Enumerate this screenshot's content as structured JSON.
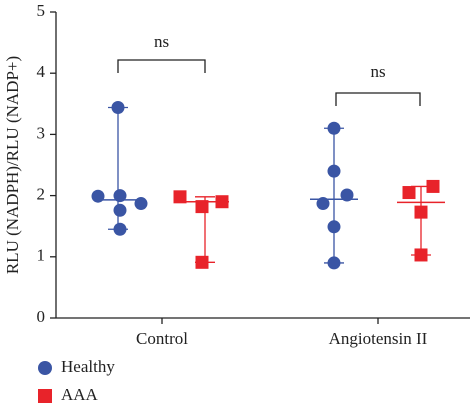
{
  "chart_data": {
    "type": "dot",
    "y_label": "RLU (NADPH)/RLU (NADP+)",
    "categories": [
      "Control",
      "Angiotensin II"
    ],
    "ylim": [
      0,
      5
    ],
    "yticks": [
      0,
      1,
      2,
      3,
      4,
      5
    ],
    "series": [
      {
        "name": "Healthy",
        "color": "#3a55a4",
        "marker": "circle",
        "values": [
          [
            3.44,
            1.99,
            2.0,
            1.87,
            1.76,
            1.45
          ],
          [
            3.1,
            2.4,
            2.01,
            1.87,
            1.49,
            0.9
          ]
        ],
        "medians": [
          1.93,
          1.94
        ]
      },
      {
        "name": "AAA",
        "color": "#e8232a",
        "marker": "square",
        "values": [
          [
            1.98,
            1.82,
            1.9,
            0.91
          ],
          [
            2.15,
            2.05,
            1.73,
            1.03
          ]
        ],
        "medians": [
          1.9,
          1.89
        ]
      }
    ],
    "annotations": [
      "ns",
      "ns"
    ]
  }
}
